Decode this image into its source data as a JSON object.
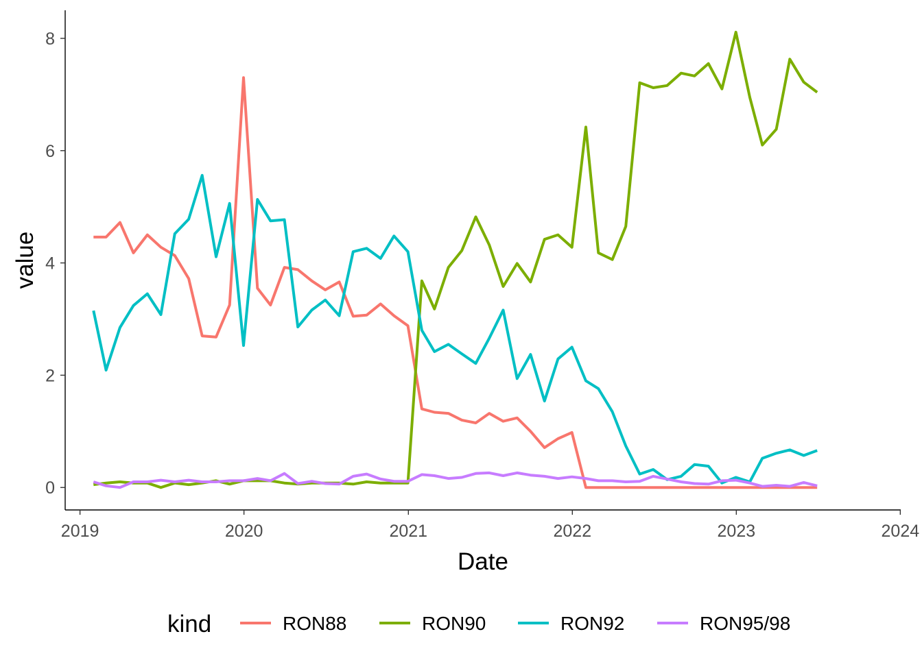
{
  "chart_data": {
    "type": "line",
    "xlabel": "Date",
    "ylabel": "value",
    "x_ticks": [
      "2019",
      "2020",
      "2021",
      "2022",
      "2023",
      "2024"
    ],
    "y_ticks": [
      "0",
      "2",
      "4",
      "6",
      "8"
    ],
    "xlim": [
      "2018-11-29",
      "2024-01-02"
    ],
    "ylim": [
      -0.4,
      8.5
    ],
    "grid": false,
    "legend": {
      "title": "kind",
      "placement": "bottom"
    },
    "x": [
      "2019-01-31",
      "2019-02-28",
      "2019-03-31",
      "2019-04-30",
      "2019-05-31",
      "2019-06-30",
      "2019-07-31",
      "2019-08-31",
      "2019-09-30",
      "2019-10-31",
      "2019-11-30",
      "2019-12-31",
      "2020-01-31",
      "2020-02-29",
      "2020-03-31",
      "2020-04-30",
      "2020-05-31",
      "2020-06-30",
      "2020-07-31",
      "2020-08-31",
      "2020-09-30",
      "2020-10-31",
      "2020-11-30",
      "2020-12-31",
      "2021-01-31",
      "2021-02-28",
      "2021-03-31",
      "2021-04-30",
      "2021-05-31",
      "2021-06-30",
      "2021-07-31",
      "2021-08-31",
      "2021-09-30",
      "2021-10-31",
      "2021-11-30",
      "2021-12-31",
      "2022-01-31",
      "2022-02-28",
      "2022-03-31",
      "2022-04-30",
      "2022-05-31",
      "2022-06-30",
      "2022-07-31",
      "2022-08-31",
      "2022-09-30",
      "2022-10-31",
      "2022-11-30",
      "2022-12-31",
      "2023-01-31",
      "2023-02-28",
      "2023-03-31",
      "2023-04-30",
      "2023-05-31",
      "2023-06-30"
    ],
    "series": [
      {
        "name": "RON88",
        "color": "#F8766D",
        "values": [
          4.46,
          4.46,
          4.72,
          4.18,
          4.5,
          4.28,
          4.13,
          3.72,
          2.7,
          2.68,
          3.25,
          7.3,
          3.55,
          3.25,
          3.92,
          3.88,
          3.68,
          3.52,
          3.66,
          3.05,
          3.07,
          3.27,
          3.06,
          2.88,
          1.4,
          1.34,
          1.32,
          1.2,
          1.15,
          1.32,
          1.18,
          1.24,
          1.0,
          0.71,
          0.87,
          0.98,
          0.0,
          0.0,
          0.0,
          0.0,
          0.0,
          0.0,
          0.0,
          0.0,
          0.0,
          0.0,
          0.0,
          0.0,
          0.0,
          0.0,
          0.0,
          0.0,
          0.0,
          0.0
        ]
      },
      {
        "name": "RON90",
        "color": "#7CAE00",
        "values": [
          0.05,
          0.08,
          0.1,
          0.08,
          0.08,
          0.0,
          0.08,
          0.05,
          0.08,
          0.12,
          0.06,
          0.12,
          0.12,
          0.12,
          0.08,
          0.06,
          0.08,
          0.08,
          0.08,
          0.06,
          0.1,
          0.08,
          0.08,
          0.08,
          3.68,
          3.18,
          3.92,
          4.22,
          4.82,
          4.32,
          3.58,
          3.99,
          3.66,
          4.42,
          4.5,
          4.28,
          6.42,
          4.18,
          4.06,
          4.65,
          7.21,
          7.12,
          7.16,
          7.38,
          7.33,
          7.55,
          7.1,
          8.11,
          6.95,
          6.1,
          6.38,
          7.63,
          7.22,
          7.04
        ]
      },
      {
        "name": "RON92",
        "color": "#00BFC4",
        "values": [
          3.15,
          2.09,
          2.85,
          3.24,
          3.45,
          3.08,
          4.52,
          4.78,
          5.56,
          4.11,
          5.06,
          2.53,
          5.13,
          4.75,
          4.77,
          2.86,
          3.16,
          3.34,
          3.06,
          4.2,
          4.26,
          4.08,
          4.48,
          4.2,
          2.8,
          2.42,
          2.55,
          2.38,
          2.21,
          2.66,
          3.16,
          1.94,
          2.37,
          1.54,
          2.29,
          2.5,
          1.9,
          1.76,
          1.35,
          0.74,
          0.24,
          0.32,
          0.14,
          0.2,
          0.41,
          0.38,
          0.08,
          0.18,
          0.1,
          0.52,
          0.61,
          0.67,
          0.57,
          0.66
        ]
      },
      {
        "name": "RON95/98",
        "color": "#C77CFF",
        "values": [
          0.1,
          0.03,
          0.0,
          0.1,
          0.1,
          0.13,
          0.1,
          0.13,
          0.1,
          0.1,
          0.12,
          0.12,
          0.16,
          0.12,
          0.25,
          0.07,
          0.11,
          0.07,
          0.06,
          0.2,
          0.24,
          0.15,
          0.11,
          0.11,
          0.23,
          0.21,
          0.16,
          0.18,
          0.25,
          0.26,
          0.21,
          0.26,
          0.22,
          0.2,
          0.16,
          0.19,
          0.16,
          0.12,
          0.12,
          0.1,
          0.11,
          0.2,
          0.15,
          0.1,
          0.07,
          0.06,
          0.12,
          0.13,
          0.08,
          0.02,
          0.04,
          0.02,
          0.09,
          0.03
        ]
      }
    ]
  }
}
